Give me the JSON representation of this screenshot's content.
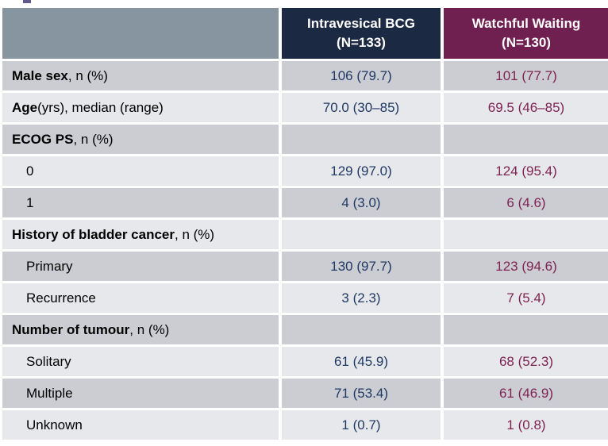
{
  "page": {
    "background": "#FFFFFF",
    "decor": {
      "title_fragment_color": "#5F5A8C"
    }
  },
  "table": {
    "description": "Baseline characteristics comparison table",
    "colors": {
      "header_blank_bg": "#8795A1",
      "header_bcg_bg": "#1B2942",
      "header_ww_bg": "#6F2051",
      "row_dark_bg": "#CBCDD3",
      "row_light_bg": "#E7E8EB",
      "bcg_value_text": "#1F3864",
      "ww_value_text": "#7E2353",
      "label_text": "#000000"
    },
    "header": {
      "col1": "",
      "col2": {
        "line1": "Intravesical BCG",
        "line2": "(N=133)"
      },
      "col3": {
        "line1": "Watchful Waiting",
        "line2": "(N=130)"
      }
    },
    "rows": [
      {
        "label_bold": "Male sex",
        "label_rest": ", n (%)",
        "bcg": "106 (79.7)",
        "ww": "101 (77.7)"
      },
      {
        "label_bold": "Age",
        "label_rest": " (yrs), median (range)",
        "bcg": "70.0 (30–85)",
        "ww": "69.5 (46–85)"
      },
      {
        "label_bold": "ECOG PS",
        "label_rest": ", n (%)",
        "bcg": "",
        "ww": ""
      },
      {
        "label_bold": "",
        "label_rest": "0",
        "bcg": "129 (97.0)",
        "ww": "124 (95.4)"
      },
      {
        "label_bold": "",
        "label_rest": "1",
        "bcg": "4 (3.0)",
        "ww": "6 (4.6)"
      },
      {
        "label_bold": "History of bladder cancer",
        "label_rest": ", n (%)",
        "bcg": "",
        "ww": ""
      },
      {
        "label_bold": "",
        "label_rest": "Primary",
        "bcg": "130 (97.7)",
        "ww": "123 (94.6)"
      },
      {
        "label_bold": "",
        "label_rest": "Recurrence",
        "bcg": "3 (2.3)",
        "ww": "7 (5.4)"
      },
      {
        "label_bold": "Number of tumour",
        "label_rest": ", n (%)",
        "bcg": "",
        "ww": ""
      },
      {
        "label_bold": "",
        "label_rest": "Solitary",
        "bcg": "61 (45.9)",
        "ww": "68 (52.3)"
      },
      {
        "label_bold": "",
        "label_rest": "Multiple",
        "bcg": "71 (53.4)",
        "ww": "61 (46.9)"
      },
      {
        "label_bold": "",
        "label_rest": "Unknown",
        "bcg": "1 (0.7)",
        "ww": "1 (0.8)"
      }
    ]
  }
}
